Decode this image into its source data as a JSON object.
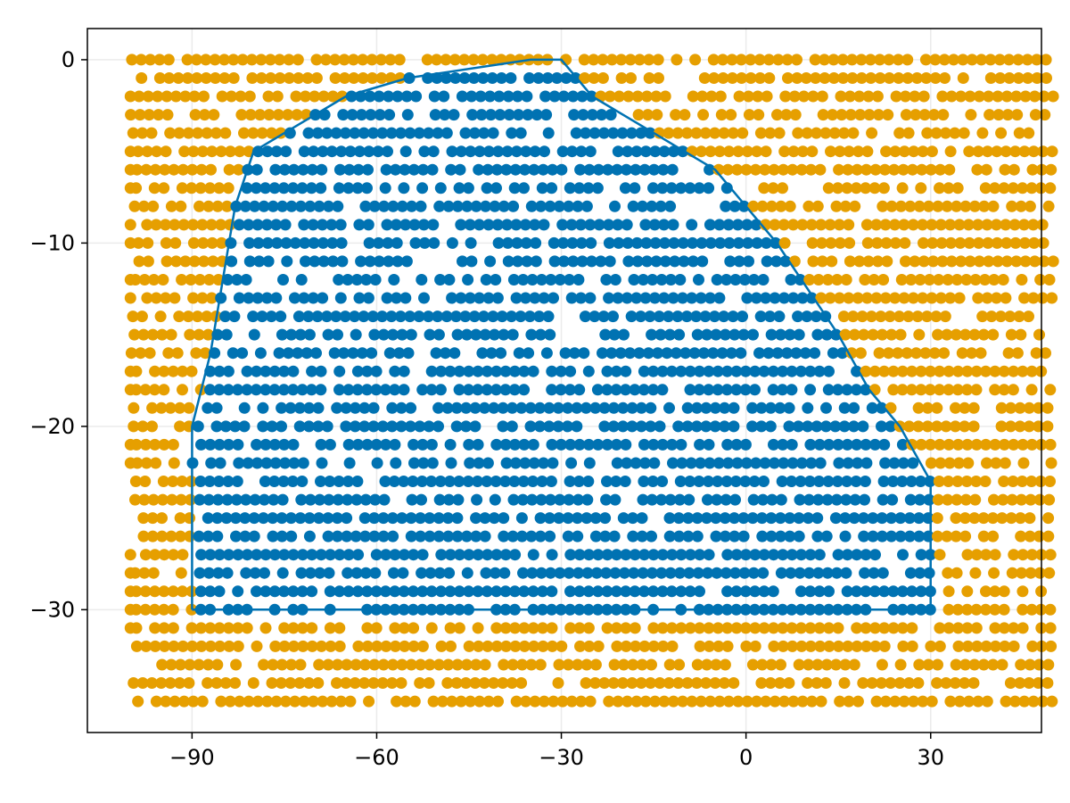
{
  "chart_data": {
    "type": "scatter",
    "title": "",
    "xlabel": "",
    "ylabel": "",
    "xlim": [
      -107,
      48
    ],
    "ylim": [
      -36.7,
      1.7
    ],
    "grid": true,
    "legend": "none",
    "x_ticks": [
      {
        "value": -90,
        "label": "−90"
      },
      {
        "value": -60,
        "label": "−60"
      },
      {
        "value": -30,
        "label": "−30"
      },
      {
        "value": 0,
        "label": "0"
      },
      {
        "value": 30,
        "label": "30"
      }
    ],
    "y_ticks": [
      {
        "value": 0,
        "label": "0"
      },
      {
        "value": -10,
        "label": "−10"
      },
      {
        "value": -20,
        "label": "−20"
      },
      {
        "value": -30,
        "label": "−30"
      }
    ],
    "colors": {
      "inside": "#0072b2",
      "outside": "#e69f00",
      "boundary": "#0072b2"
    },
    "points": {
      "x_range": [
        -100,
        50
      ],
      "y_range": [
        -35,
        0
      ],
      "y_step": 1,
      "approx_x_step": 1.5
    },
    "series": [
      {
        "type": "line",
        "points": [
          [
            -90,
            -30
          ],
          [
            -90,
            -20
          ],
          [
            -87,
            -16
          ],
          [
            -85,
            -12
          ],
          [
            -83,
            -8
          ],
          [
            -80,
            -5
          ],
          [
            -65,
            -2
          ],
          [
            -55,
            -1
          ],
          [
            -35,
            0
          ],
          [
            -30,
            0
          ],
          [
            -25,
            -2
          ],
          [
            -15,
            -4
          ],
          [
            -5,
            -6
          ],
          [
            5,
            -10
          ],
          [
            15,
            -15
          ],
          [
            20,
            -18
          ],
          [
            25,
            -20
          ],
          [
            30,
            -23
          ],
          [
            30,
            -30
          ],
          [
            -90,
            -30
          ]
        ]
      }
    ]
  }
}
